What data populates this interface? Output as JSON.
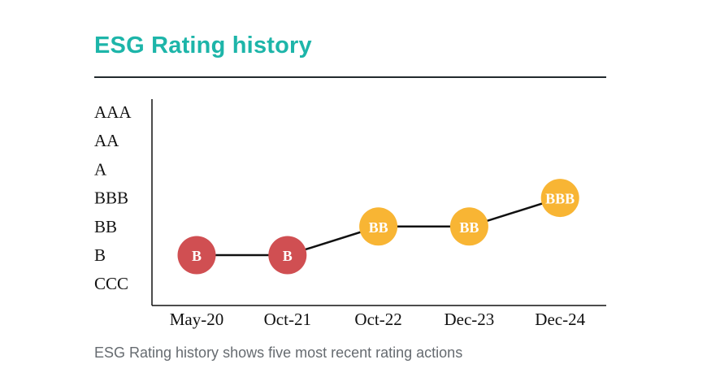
{
  "title": "ESG Rating history",
  "caption": "ESG Rating history shows five most recent rating actions",
  "colors": {
    "title": "#1db5a9",
    "laggard": "#d04f52",
    "average": "#f8b534",
    "line": "#111111"
  },
  "chart_data": {
    "type": "line",
    "title": "ESG Rating history",
    "xlabel": "",
    "ylabel": "",
    "y_categories": [
      "CCC",
      "B",
      "BB",
      "BBB",
      "A",
      "AA",
      "AAA"
    ],
    "categories": [
      "May-20",
      "Oct-21",
      "Oct-22",
      "Dec-23",
      "Dec-24"
    ],
    "series": [
      {
        "name": "ESG Rating",
        "values": [
          "B",
          "B",
          "BB",
          "BB",
          "BBB"
        ],
        "marker_colors": [
          "#d04f52",
          "#d04f52",
          "#f8b534",
          "#f8b534",
          "#f8b534"
        ]
      }
    ],
    "grid": false,
    "legend": "none"
  }
}
